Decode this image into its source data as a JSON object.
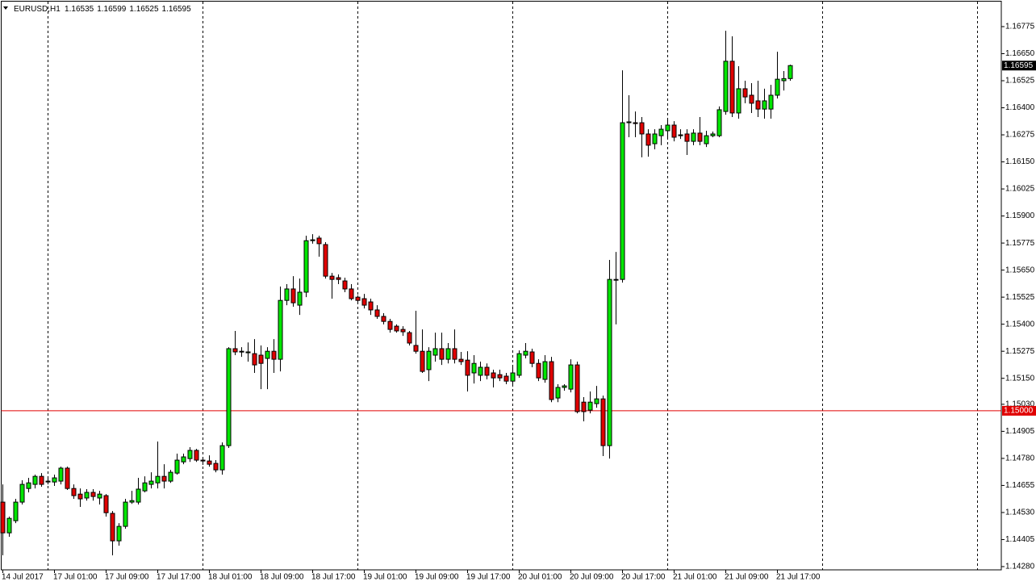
{
  "chart_data": {
    "type": "candlestick",
    "symbol": "EURUSD,H1",
    "up_color": "#00e600",
    "down_color": "#e00000",
    "categories": [
      "14 Jul 2017",
      null,
      null,
      null,
      null,
      null,
      null,
      null,
      "17 Jul 01:00",
      null,
      null,
      null,
      null,
      null,
      null,
      null,
      "17 Jul 09:00",
      null,
      null,
      null,
      null,
      null,
      null,
      null,
      "17 Jul 17:00",
      null,
      null,
      null,
      null,
      null,
      null,
      null,
      "18 Jul 01:00",
      null,
      null,
      null,
      null,
      null,
      null,
      null,
      "18 Jul 09:00",
      null,
      null,
      null,
      null,
      null,
      null,
      null,
      "18 Jul 17:00",
      null,
      null,
      null,
      null,
      null,
      null,
      null,
      "19 Jul 01:00",
      null,
      null,
      null,
      null,
      null,
      null,
      null,
      "19 Jul 09:00",
      null,
      null,
      null,
      null,
      null,
      null,
      null,
      "19 Jul 17:00",
      null,
      null,
      null,
      null,
      null,
      null,
      null,
      "20 Jul 01:00",
      null,
      null,
      null,
      null,
      null,
      null,
      null,
      "20 Jul 09:00",
      null,
      null,
      null,
      null,
      null,
      null,
      null,
      "20 Jul 17:00",
      null,
      null,
      null,
      null,
      null,
      null,
      null,
      "21 Jul 01:00",
      null,
      null,
      null,
      null,
      null,
      null,
      null,
      "21 Jul 09:00",
      null,
      null,
      null,
      null,
      null,
      null,
      null,
      "21 Jul 17:00",
      null,
      null
    ],
    "open": [
      1.14578,
      1.14436,
      1.14492,
      1.14578,
      1.14641,
      1.1466,
      1.14697,
      1.14671,
      1.14671,
      1.14675,
      1.14735,
      1.14641,
      1.14615,
      1.14597,
      1.14623,
      1.14597,
      1.14608,
      1.14526,
      1.14399,
      1.14466,
      1.14578,
      1.14578,
      1.1463,
      1.1466,
      1.14667,
      1.14697,
      1.14675,
      1.14712,
      1.14764,
      1.14779,
      1.14817,
      1.14772,
      1.14768,
      1.14757,
      1.14727,
      1.14839,
      1.15287,
      1.15272,
      1.15268,
      1.15264,
      1.15257,
      1.15242,
      1.15275,
      1.15238,
      1.1551,
      1.15563,
      1.15488,
      1.15548,
      1.15786,
      1.15798,
      1.15768,
      1.15622,
      1.15615,
      1.156,
      1.15563,
      1.15525,
      1.15518,
      1.15503,
      1.15466,
      1.15436,
      1.15413,
      1.15391,
      1.15376,
      1.15361,
      1.15302,
      1.15275,
      1.1519,
      1.15257,
      1.15287,
      1.15238,
      1.15287,
      1.15238,
      1.15234,
      1.15175,
      1.15164,
      1.15201,
      1.15175,
      1.15167,
      1.1516,
      1.15137,
      1.15164,
      1.15257,
      1.15272,
      1.15219,
      1.15145,
      1.15227,
      1.15059,
      1.15108,
      1.151,
      1.15212,
      1.1504,
      1.15003,
      1.15033,
      1.15055,
      1.14839,
      1.15607,
      1.15607,
      1.16331,
      1.16331,
      1.16331,
      1.16279,
      1.16234,
      1.16271,
      1.16294,
      1.1632,
      1.16271,
      1.16279,
      1.16245,
      1.16283,
      1.16234,
      1.16271,
      1.16271,
      1.16383,
      1.16615,
      1.16376,
      1.16488,
      1.16458,
      1.16432,
      1.16394,
      1.16394,
      1.16458,
      1.16525,
      1.16535
    ],
    "high": [
      1.1466,
      1.14511,
      1.14593,
      1.14679,
      1.1469,
      1.14705,
      1.14712,
      1.1469,
      1.14705,
      1.14742,
      1.14742,
      1.1466,
      1.14641,
      1.14638,
      1.14638,
      1.1463,
      1.14615,
      1.14537,
      1.14481,
      1.14593,
      1.1463,
      1.1469,
      1.14697,
      1.14716,
      1.14858,
      1.14753,
      1.14727,
      1.14802,
      1.14802,
      1.14832,
      1.14824,
      1.14787,
      1.14794,
      1.14772,
      1.14854,
      1.15294,
      1.15369,
      1.15294,
      1.15316,
      1.15331,
      1.15302,
      1.15294,
      1.15331,
      1.15574,
      1.15585,
      1.15622,
      1.15611,
      1.15809,
      1.15816,
      1.15809,
      1.15779,
      1.15637,
      1.1563,
      1.15615,
      1.15585,
      1.15533,
      1.1554,
      1.15518,
      1.15488,
      1.15451,
      1.15425,
      1.15399,
      1.15391,
      1.15369,
      1.15462,
      1.15376,
      1.15294,
      1.15361,
      1.15361,
      1.15313,
      1.15376,
      1.15272,
      1.15275,
      1.15257,
      1.15227,
      1.15219,
      1.1519,
      1.1519,
      1.15175,
      1.15201,
      1.15279,
      1.15313,
      1.15287,
      1.15238,
      1.15257,
      1.15249,
      1.15123,
      1.15123,
      1.15238,
      1.15227,
      1.15063,
      1.15089,
      1.15115,
      1.1507,
      1.15697,
      1.15734,
      1.16573,
      1.16458,
      1.16383,
      1.16357,
      1.16301,
      1.16301,
      1.1632,
      1.16346,
      1.16338,
      1.16301,
      1.16301,
      1.16301,
      1.16357,
      1.16294,
      1.1629,
      1.16406,
      1.16756,
      1.1673,
      1.16592,
      1.16525,
      1.16514,
      1.16525,
      1.16488,
      1.16506,
      1.16659,
      1.1657,
      1.16599
    ],
    "low": [
      1.14332,
      1.14418,
      1.14481,
      1.14567,
      1.14623,
      1.14641,
      1.14649,
      1.1466,
      1.14653,
      1.1466,
      1.14634,
      1.14593,
      1.14556,
      1.14585,
      1.14585,
      1.14567,
      1.14511,
      1.14332,
      1.14377,
      1.14455,
      1.1457,
      1.14567,
      1.14623,
      1.14641,
      1.14641,
      1.14641,
      1.14667,
      1.14705,
      1.14753,
      1.14764,
      1.14764,
      1.1475,
      1.14742,
      1.14716,
      1.14705,
      1.14828,
      1.15257,
      1.15249,
      1.15227,
      1.15175,
      1.151,
      1.151,
      1.15175,
      1.15182,
      1.15488,
      1.15481,
      1.15443,
      1.15525,
      1.15772,
      1.15712,
      1.15611,
      1.15518,
      1.15585,
      1.15548,
      1.1551,
      1.15503,
      1.15473,
      1.15443,
      1.15425,
      1.15399,
      1.15361,
      1.15361,
      1.15346,
      1.15302,
      1.15264,
      1.15175,
      1.15137,
      1.15227,
      1.15212,
      1.15219,
      1.15219,
      1.15212,
      1.15089,
      1.15126,
      1.15137,
      1.15145,
      1.15108,
      1.15137,
      1.15123,
      1.15123,
      1.15152,
      1.15242,
      1.15201,
      1.15137,
      1.1513,
      1.1504,
      1.1504,
      1.15093,
      1.15085,
      1.14988,
      1.14951,
      1.14988,
      1.15014,
      1.14791,
      1.14779,
      1.15399,
      1.15592,
      1.16264,
      1.16264,
      1.16171,
      1.16174,
      1.16208,
      1.16227,
      1.16256,
      1.16245,
      1.16256,
      1.16182,
      1.16227,
      1.16227,
      1.16219,
      1.16264,
      1.16264,
      1.16368,
      1.16357,
      1.1635,
      1.16421,
      1.16376,
      1.16357,
      1.1635,
      1.1635,
      1.16443,
      1.1648,
      1.16525
    ],
    "close": [
      1.14436,
      1.14503,
      1.14578,
      1.1466,
      1.14667,
      1.14697,
      1.1466,
      1.14675,
      1.1469,
      1.14735,
      1.14641,
      1.14608,
      1.14593,
      1.14623,
      1.14604,
      1.14615,
      1.14529,
      1.14399,
      1.14466,
      1.14578,
      1.14585,
      1.14638,
      1.14667,
      1.14675,
      1.14697,
      1.14675,
      1.14716,
      1.14772,
      1.14787,
      1.14817,
      1.14772,
      1.14768,
      1.14753,
      1.14727,
      1.14839,
      1.15287,
      1.15272,
      1.15275,
      1.15272,
      1.15212,
      1.15219,
      1.15275,
      1.15238,
      1.1551,
      1.15563,
      1.15499,
      1.15548,
      1.15786,
      1.1579,
      1.15772,
      1.15622,
      1.15607,
      1.15607,
      1.15563,
      1.15518,
      1.1551,
      1.15488,
      1.15466,
      1.15436,
      1.15413,
      1.15376,
      1.15369,
      1.15365,
      1.15313,
      1.15275,
      1.15182,
      1.15275,
      1.15287,
      1.15238,
      1.15287,
      1.15238,
      1.15227,
      1.15164,
      1.15219,
      1.15201,
      1.15164,
      1.15152,
      1.15152,
      1.15137,
      1.15175,
      1.15264,
      1.15275,
      1.15219,
      1.15152,
      1.15227,
      1.15052,
      1.15108,
      1.15115,
      1.15212,
      1.14996,
      1.14996,
      1.1504,
      1.15055,
      1.14839,
      1.15607,
      1.15607,
      1.16331,
      1.16335,
      1.16327,
      1.16279,
      1.16227,
      1.16279,
      1.16301,
      1.1632,
      1.16264,
      1.16275,
      1.16245,
      1.16283,
      1.16245,
      1.16271,
      1.16279,
      1.16391,
      1.16615,
      1.16376,
      1.16488,
      1.1645,
      1.16421,
      1.16394,
      1.16432,
      1.16458,
      1.16532,
      1.16535,
      1.16595
    ],
    "ylim": [
      1.14265,
      1.16898
    ],
    "yticks": [
      1.16775,
      {
        "value": 1.1665,
        "label": "1.16650"
      },
      1.16525,
      {
        "value": 1.164,
        "label": "1.16400"
      },
      1.16275,
      {
        "value": 1.1615,
        "label": "1.16150"
      },
      1.16025,
      {
        "value": 1.159,
        "label": "1.15900"
      },
      1.15775,
      {
        "value": 1.1565,
        "label": "1.15650"
      },
      1.15525,
      {
        "value": 1.154,
        "label": "1.15400"
      },
      1.15275,
      {
        "value": 1.1515,
        "label": "1.15150"
      },
      {
        "value": 1.1503,
        "label": "1.15030"
      },
      1.14905,
      {
        "value": 1.1478,
        "label": "1.14780"
      },
      1.14655,
      {
        "value": 1.1453,
        "label": "1.14530"
      },
      1.14405,
      {
        "value": 1.1428,
        "label": "1.14280"
      }
    ],
    "level": {
      "value": 1.15,
      "label": "1.15000",
      "color": "#e00000"
    }
  }
}
